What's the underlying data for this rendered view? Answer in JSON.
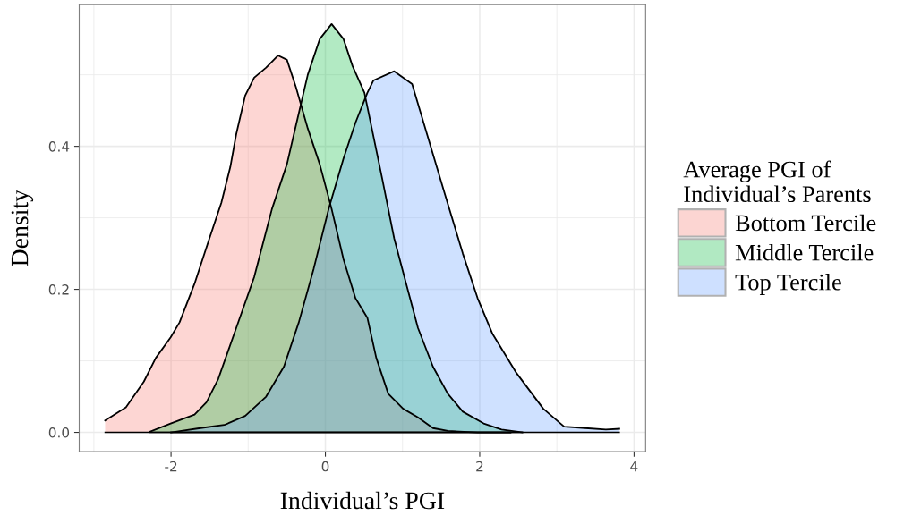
{
  "chart_data": {
    "type": "area",
    "xlabel": "Individual’s PGI",
    "ylabel": "Density",
    "legend_title": "Average PGI of\nIndividual’s Parents",
    "xlim": [
      -3.19,
      4.15
    ],
    "ylim": [
      -0.027,
      0.598
    ],
    "xticks": [
      -2,
      0,
      2,
      4
    ],
    "yticks": [
      {
        "value": 0,
        "label": "0.0"
      },
      0.2,
      0.4
    ],
    "grid": true,
    "legend": "right",
    "series": [
      {
        "name": "Bottom Tercile",
        "color": "#f8766d",
        "x": [
          -2.854,
          -2.584,
          -2.352,
          -2.198,
          -2.005,
          -1.889,
          -1.695,
          -1.503,
          -1.348,
          -1.232,
          -1.155,
          -1.039,
          -0.923,
          -0.768,
          -0.614,
          -0.498,
          -0.382,
          -0.228,
          -0.073,
          0.081,
          0.235,
          0.39,
          0.545,
          0.66,
          0.815,
          1.008,
          1.2,
          1.394,
          1.587,
          1.97,
          2.4
        ],
        "values": [
          0.0166,
          0.035,
          0.071,
          0.104,
          0.133,
          0.154,
          0.208,
          0.271,
          0.321,
          0.371,
          0.417,
          0.471,
          0.496,
          0.51,
          0.527,
          0.521,
          0.483,
          0.425,
          0.375,
          0.3125,
          0.242,
          0.1875,
          0.16,
          0.104,
          0.054,
          0.033,
          0.021,
          0.006,
          0.002,
          0.0,
          0.0
        ]
      },
      {
        "name": "Middle Tercile",
        "color": "#00ba38",
        "x": [
          -2.275,
          -2.005,
          -1.695,
          -1.541,
          -1.387,
          -1.155,
          -0.923,
          -0.692,
          -0.498,
          -0.382,
          -0.228,
          -0.073,
          0.081,
          0.235,
          0.351,
          0.506,
          0.738,
          0.892,
          1.047,
          1.2,
          1.394,
          1.587,
          1.781,
          2.051,
          2.283,
          2.553
        ],
        "values": [
          0.001,
          0.0125,
          0.025,
          0.042,
          0.075,
          0.146,
          0.217,
          0.3125,
          0.375,
          0.429,
          0.5,
          0.55,
          0.571,
          0.55,
          0.5125,
          0.475,
          0.354,
          0.271,
          0.208,
          0.146,
          0.092,
          0.054,
          0.029,
          0.0125,
          0.004,
          0.0
        ]
      },
      {
        "name": "Top Tercile",
        "color": "#619cff",
        "x": [
          -2.0,
          -1.619,
          -1.309,
          -1.039,
          -0.768,
          -0.537,
          -0.344,
          -0.151,
          0.043,
          0.235,
          0.39,
          0.545,
          0.622,
          0.892,
          1.124,
          1.317,
          1.549,
          1.781,
          1.973,
          2.167,
          2.476,
          2.824,
          3.094,
          3.364,
          3.635,
          3.809
        ],
        "values": [
          0.0,
          0.006,
          0.0104,
          0.023,
          0.05,
          0.092,
          0.154,
          0.229,
          0.3125,
          0.383,
          0.433,
          0.475,
          0.492,
          0.505,
          0.487,
          0.417,
          0.333,
          0.25,
          0.1875,
          0.1375,
          0.083,
          0.033,
          0.008,
          0.006,
          0.004,
          0.005
        ]
      }
    ]
  }
}
